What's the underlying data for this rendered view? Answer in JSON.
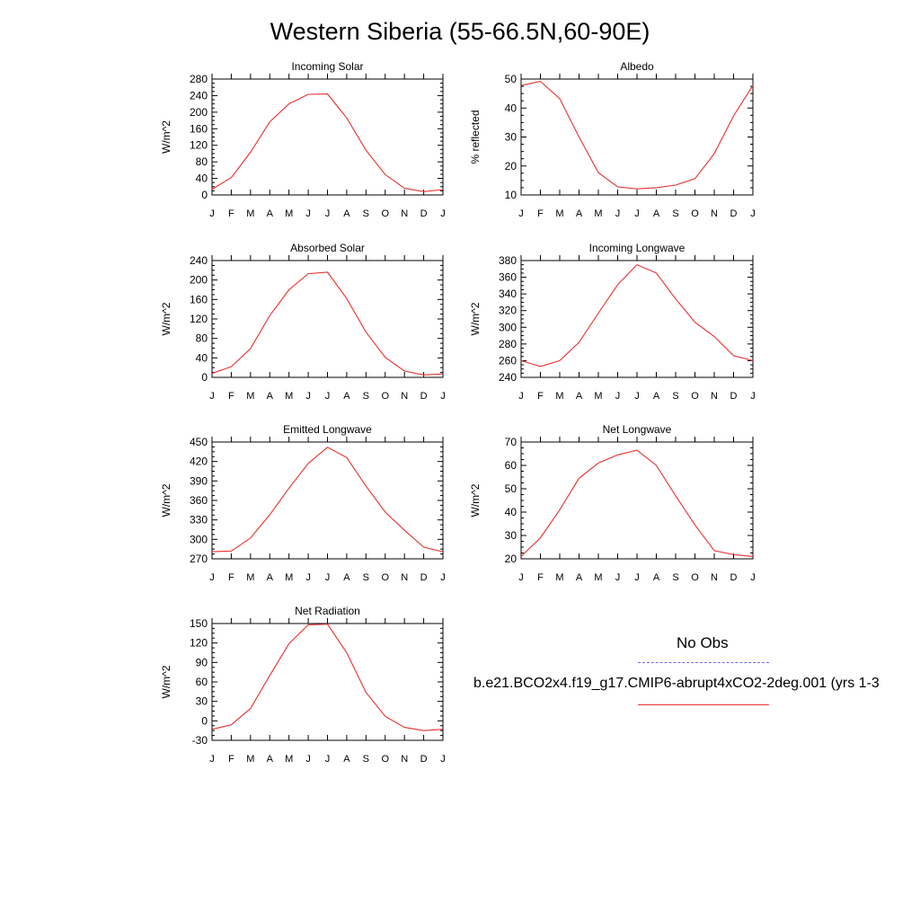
{
  "page": {
    "title": "Western Siberia (55-66.5N,60-90E)"
  },
  "legend": {
    "obs_label": "No Obs",
    "obs_color": "#6b6bdd",
    "model_label": "b.e21.BCO2x4.f19_g17.CMIP6-abrupt4xCO2-2deg.001 (yrs 1-3",
    "model_color": "#e83030"
  },
  "chart_data": [
    {
      "type": "line",
      "title": "Incoming Solar",
      "ylabel": "W/m^2",
      "categories": [
        "J",
        "F",
        "M",
        "A",
        "M",
        "J",
        "J",
        "A",
        "S",
        "O",
        "N",
        "D",
        "J"
      ],
      "ylim": [
        0,
        280
      ],
      "yticks": [
        0,
        40,
        80,
        120,
        160,
        200,
        240,
        280
      ],
      "series": [
        {
          "values": [
            14,
            42,
            103,
            177,
            220,
            243,
            244,
            186,
            108,
            49,
            16,
            8,
            13
          ]
        }
      ]
    },
    {
      "type": "line",
      "title": "Albedo",
      "ylabel": "% reflected",
      "categories": [
        "J",
        "F",
        "M",
        "A",
        "M",
        "J",
        "J",
        "A",
        "S",
        "O",
        "N",
        "D",
        "J"
      ],
      "ylim": [
        10,
        50
      ],
      "yticks": [
        10,
        20,
        30,
        40,
        50
      ],
      "series": [
        {
          "values": [
            47.8,
            49.2,
            43.2,
            30.0,
            17.7,
            12.8,
            12.1,
            12.5,
            13.4,
            15.6,
            24.3,
            37.3,
            47.8
          ]
        }
      ]
    },
    {
      "type": "line",
      "title": "Absorbed Solar",
      "ylabel": "W/m^2",
      "categories": [
        "J",
        "F",
        "M",
        "A",
        "M",
        "J",
        "J",
        "A",
        "S",
        "O",
        "N",
        "D",
        "J"
      ],
      "ylim": [
        0,
        240
      ],
      "yticks": [
        0,
        40,
        80,
        120,
        160,
        200,
        240
      ],
      "series": [
        {
          "values": [
            8,
            22,
            59,
            127,
            180,
            213,
            216,
            162,
            93,
            41,
            13,
            5,
            7
          ]
        }
      ]
    },
    {
      "type": "line",
      "title": "Incoming Longwave",
      "ylabel": "W/m^2",
      "categories": [
        "J",
        "F",
        "M",
        "A",
        "M",
        "J",
        "J",
        "A",
        "S",
        "O",
        "N",
        "D",
        "J"
      ],
      "ylim": [
        240,
        380
      ],
      "yticks": [
        240,
        260,
        280,
        300,
        320,
        340,
        360,
        380
      ],
      "series": [
        {
          "values": [
            260,
            253,
            260,
            282,
            317,
            351,
            375,
            365,
            334,
            306,
            289,
            266,
            260
          ]
        }
      ]
    },
    {
      "type": "line",
      "title": "Emitted Longwave",
      "ylabel": "W/m^2",
      "categories": [
        "J",
        "F",
        "M",
        "A",
        "M",
        "J",
        "J",
        "A",
        "S",
        "O",
        "N",
        "D",
        "J"
      ],
      "ylim": [
        270,
        450
      ],
      "yticks": [
        270,
        300,
        330,
        360,
        390,
        420,
        450
      ],
      "series": [
        {
          "values": [
            281,
            282,
            302,
            338,
            379,
            417,
            442,
            426,
            382,
            342,
            314,
            288,
            281
          ]
        }
      ]
    },
    {
      "type": "line",
      "title": "Net Longwave",
      "ylabel": "W/m^2",
      "categories": [
        "J",
        "F",
        "M",
        "A",
        "M",
        "J",
        "J",
        "A",
        "S",
        "O",
        "N",
        "D",
        "J"
      ],
      "ylim": [
        20,
        70
      ],
      "yticks": [
        20,
        30,
        40,
        50,
        60,
        70
      ],
      "series": [
        {
          "values": [
            21,
            29,
            41,
            54.5,
            61,
            64.5,
            66.5,
            60,
            47,
            34.5,
            23.5,
            21.8,
            21
          ]
        }
      ]
    },
    {
      "type": "line",
      "title": "Net Radiation",
      "ylabel": "W/m^2",
      "categories": [
        "J",
        "F",
        "M",
        "A",
        "M",
        "J",
        "J",
        "A",
        "S",
        "O",
        "N",
        "D",
        "J"
      ],
      "ylim": [
        -30,
        150
      ],
      "yticks": [
        -30,
        0,
        30,
        60,
        90,
        120,
        150
      ],
      "series": [
        {
          "values": [
            -13,
            -6,
            19,
            70,
            119,
            148,
            149,
            105,
            44,
            7,
            -10,
            -15,
            -13
          ]
        }
      ]
    }
  ]
}
